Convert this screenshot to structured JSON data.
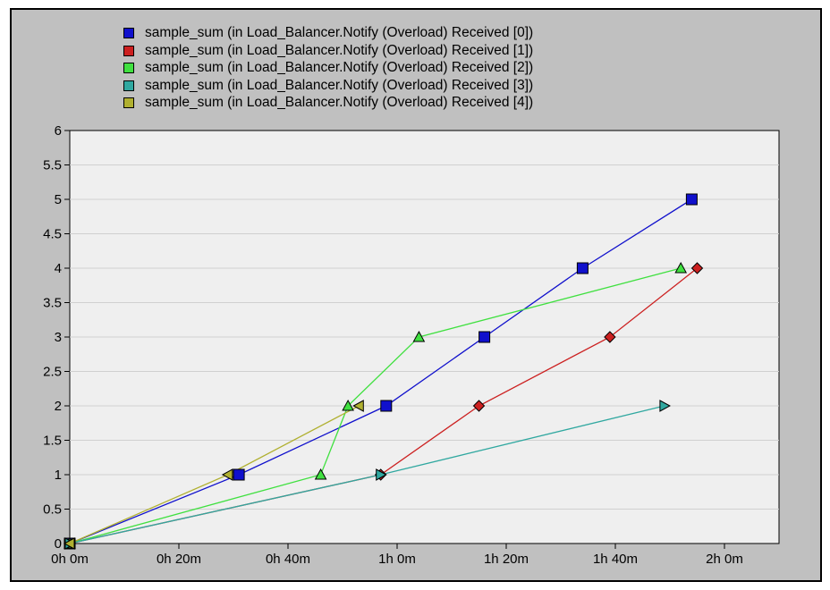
{
  "chart_data": {
    "type": "line",
    "title": "",
    "xlabel": "",
    "ylabel": "",
    "grid": true,
    "legend_position": "top-center",
    "xlim": [
      0,
      130
    ],
    "ylim": [
      0,
      6
    ],
    "x_ticks": [
      {
        "value": 0,
        "label": "0h 0m"
      },
      {
        "value": 20,
        "label": "0h 20m"
      },
      {
        "value": 40,
        "label": "0h 40m"
      },
      {
        "value": 60,
        "label": "1h 0m"
      },
      {
        "value": 80,
        "label": "1h 20m"
      },
      {
        "value": 100,
        "label": "1h 40m"
      },
      {
        "value": 120,
        "label": "2h 0m"
      }
    ],
    "y_ticks": [
      {
        "value": 0,
        "label": "0"
      },
      {
        "value": 0.5,
        "label": "0.5"
      },
      {
        "value": 1,
        "label": "1"
      },
      {
        "value": 1.5,
        "label": "1.5"
      },
      {
        "value": 2,
        "label": "2"
      },
      {
        "value": 2.5,
        "label": "2.5"
      },
      {
        "value": 3,
        "label": "3"
      },
      {
        "value": 3.5,
        "label": "3.5"
      },
      {
        "value": 4,
        "label": "4"
      },
      {
        "value": 4.5,
        "label": "4.5"
      },
      {
        "value": 5,
        "label": "5"
      },
      {
        "value": 5.5,
        "label": "5.5"
      },
      {
        "value": 6,
        "label": "6"
      }
    ],
    "series": [
      {
        "name": "sample_sum (in Load_Balancer.Notify (Overload) Received [0])",
        "color": "#1010cc",
        "marker": "square",
        "x": [
          0,
          31,
          58,
          76,
          94,
          114
        ],
        "y": [
          0,
          1,
          2,
          3,
          4,
          5
        ]
      },
      {
        "name": "sample_sum (in Load_Balancer.Notify (Overload) Received [1])",
        "color": "#cc2020",
        "marker": "diamond",
        "x": [
          0,
          57,
          75,
          99,
          115
        ],
        "y": [
          0,
          1,
          2,
          3,
          4
        ]
      },
      {
        "name": "sample_sum (in Load_Balancer.Notify (Overload) Received [2])",
        "color": "#40e040",
        "marker": "triangle-up",
        "x": [
          0,
          46,
          51,
          64,
          112
        ],
        "y": [
          0,
          1,
          2,
          3,
          4
        ]
      },
      {
        "name": "sample_sum (in Load_Balancer.Notify (Overload) Received [3])",
        "color": "#30a8a0",
        "marker": "triangle-right",
        "x": [
          0,
          57,
          109
        ],
        "y": [
          0,
          1,
          2
        ]
      },
      {
        "name": "sample_sum (in Load_Balancer.Notify (Overload) Received [4])",
        "color": "#b0b030",
        "marker": "triangle-left",
        "x": [
          0,
          29,
          53
        ],
        "y": [
          0,
          1,
          2
        ]
      }
    ]
  }
}
